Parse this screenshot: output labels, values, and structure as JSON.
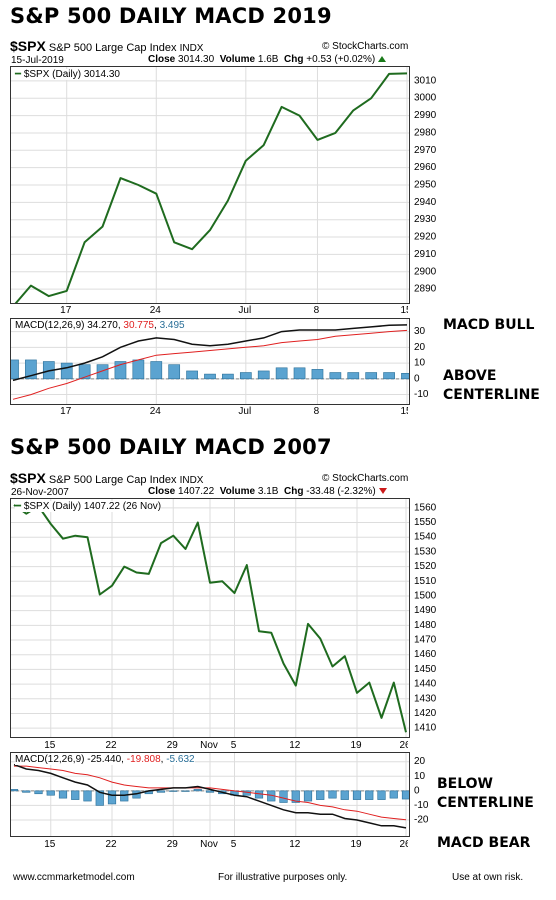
{
  "colors": {
    "price": "#1f6b1f",
    "macd": "#111111",
    "signal": "#e02020",
    "hist": "#5ba3d0",
    "hist_stroke": "#2a6f98",
    "grid": "#dddddd"
  },
  "chart1": {
    "title": "S&P 500 DAILY MACD 2019",
    "symbol": "$SPX",
    "index_name": "S&P 500 Large Cap Index",
    "exchange": "INDX",
    "source": "© StockCharts.com",
    "date": "15-Jul-2019",
    "close_label": "Close",
    "close_value": "3014.30",
    "volume_label": "Volume",
    "volume_value": "1.6B",
    "chg_label": "Chg",
    "chg_value": "+0.53 (+0.02%)",
    "price_legend": "$SPX (Daily) 3014.30",
    "macd_legend_name": "MACD(12,26,9)",
    "macd_legend_macd": "34.270",
    "macd_legend_signal": "30.775",
    "macd_legend_hist": "3.495",
    "side_label_top": "MACD BULL",
    "side_label_bottom": [
      "ABOVE",
      "CENTERLINE"
    ]
  },
  "chart2": {
    "title": "S&P 500 DAILY MACD 2007",
    "symbol": "$SPX",
    "index_name": "S&P 500 Large Cap Index",
    "exchange": "INDX",
    "source": "© StockCharts.com",
    "date": "26-Nov-2007",
    "close_label": "Close",
    "close_value": "1407.22",
    "volume_label": "Volume",
    "volume_value": "3.1B",
    "chg_label": "Chg",
    "chg_value": "-33.48 (-2.32%)",
    "price_legend": "$SPX (Daily) 1407.22 (26 Nov)",
    "macd_legend_name": "MACD(12,26,9)",
    "macd_legend_macd": "-25.440",
    "macd_legend_signal": "-19.808",
    "macd_legend_hist": "-5.632",
    "side_label_top": [
      "BELOW",
      "CENTERLINE"
    ],
    "side_label_bottom": "MACD BEAR"
  },
  "footer": {
    "left": "www.ccmmarketmodel.com",
    "center": "For illustrative purposes only.",
    "right": "Use at own risk."
  },
  "chart_data": [
    {
      "type": "line",
      "title": "S&P 500 DAILY MACD 2019",
      "legend": "$SPX (Daily) 3014.30",
      "x": [
        "2019-06-12",
        "2019-06-13",
        "2019-06-14",
        "2019-06-17",
        "2019-06-18",
        "2019-06-19",
        "2019-06-20",
        "2019-06-21",
        "2019-06-24",
        "2019-06-25",
        "2019-06-26",
        "2019-06-27",
        "2019-06-28",
        "2019-07-01",
        "2019-07-02",
        "2019-07-03",
        "2019-07-05",
        "2019-07-08",
        "2019-07-09",
        "2019-07-10",
        "2019-07-11",
        "2019-07-12",
        "2019-07-15"
      ],
      "x_ticks": [
        "17",
        "24",
        "Jul",
        "8",
        "15"
      ],
      "series": [
        {
          "name": "$SPX (Daily)",
          "values": [
            2880,
            2892,
            2886,
            2889,
            2917,
            2926,
            2954,
            2950,
            2945,
            2917,
            2913,
            2924,
            2941,
            2964,
            2973,
            2995,
            2990,
            2976,
            2980,
            2993,
            3000,
            3014,
            3014.3
          ]
        }
      ],
      "y_ticks": [
        2890,
        2900,
        2910,
        2920,
        2930,
        2940,
        2950,
        2960,
        2970,
        2980,
        2990,
        3000,
        3010
      ],
      "ylim": [
        2882,
        3018
      ],
      "grid": true
    },
    {
      "type": "line",
      "title": "",
      "legend": "MACD(12,26,9) 34.270, 30.775, 3.495",
      "x_ticks": [
        "17",
        "24",
        "Jul",
        "8",
        "15"
      ],
      "series": [
        {
          "name": "MACD",
          "values": [
            -1,
            2,
            5,
            7,
            10,
            14,
            20,
            24,
            26,
            25,
            22,
            21,
            22,
            24,
            26,
            30,
            31,
            31,
            31,
            32,
            33,
            34,
            34.27
          ]
        },
        {
          "name": "Signal",
          "values": [
            -13,
            -10,
            -6,
            -3,
            1,
            5,
            9,
            12,
            15,
            16,
            17,
            18,
            19,
            20,
            21,
            23,
            24,
            25,
            27,
            28,
            29,
            30,
            30.775
          ]
        },
        {
          "name": "Histogram",
          "values": [
            12,
            12,
            11,
            10,
            9,
            9,
            11,
            12,
            11,
            9,
            5,
            3,
            3,
            4,
            5,
            7,
            7,
            6,
            4,
            4,
            4,
            4,
            3.495
          ]
        }
      ],
      "y_ticks": [
        -10,
        0,
        10,
        20,
        30
      ],
      "ylim": [
        -16,
        38
      ],
      "grid": true
    },
    {
      "type": "line",
      "title": "S&P 500 DAILY MACD 2007",
      "legend": "$SPX (Daily) 1407.22 (26 Nov)",
      "x": [
        "2007-10-10",
        "2007-10-11",
        "2007-10-12",
        "2007-10-15",
        "2007-10-16",
        "2007-10-17",
        "2007-10-18",
        "2007-10-19",
        "2007-10-22",
        "2007-10-23",
        "2007-10-24",
        "2007-10-25",
        "2007-10-26",
        "2007-10-29",
        "2007-10-30",
        "2007-10-31",
        "2007-11-01",
        "2007-11-02",
        "2007-11-05",
        "2007-11-06",
        "2007-11-07",
        "2007-11-08",
        "2007-11-09",
        "2007-11-12",
        "2007-11-13",
        "2007-11-14",
        "2007-11-15",
        "2007-11-16",
        "2007-11-19",
        "2007-11-20",
        "2007-11-21",
        "2007-11-23",
        "2007-11-26"
      ],
      "x_ticks": [
        "15",
        "22",
        "29",
        "Nov",
        "5",
        "12",
        "19",
        "26"
      ],
      "series": [
        {
          "name": "$SPX (Daily)",
          "values": [
            1562,
            1556,
            1561,
            1549,
            1539,
            1541,
            1540,
            1501,
            1507,
            1520,
            1516,
            1515,
            1536,
            1541,
            1532,
            1550,
            1509,
            1510,
            1502,
            1521,
            1476,
            1475,
            1454,
            1439,
            1481,
            1471,
            1452,
            1459,
            1434,
            1441,
            1417,
            1441,
            1407.22
          ]
        }
      ],
      "y_ticks": [
        1410,
        1420,
        1430,
        1440,
        1450,
        1460,
        1470,
        1480,
        1490,
        1500,
        1510,
        1520,
        1530,
        1540,
        1550,
        1560
      ],
      "ylim": [
        1404,
        1566
      ],
      "grid": true
    },
    {
      "type": "line",
      "title": "",
      "legend": "MACD(12,26,9) -25.440, -19.808, -5.632",
      "x_ticks": [
        "15",
        "22",
        "29",
        "Nov",
        "5",
        "12",
        "19",
        "26"
      ],
      "series": [
        {
          "name": "MACD",
          "values": [
            18,
            15,
            14,
            12,
            9,
            6,
            4,
            -1,
            -3,
            -3,
            -2,
            0,
            1,
            2,
            2,
            3,
            1,
            -1,
            -3,
            -4,
            -7,
            -10,
            -13,
            -15,
            -15,
            -16,
            -16,
            -19,
            -20,
            -22,
            -24,
            -24,
            -25.44
          ]
        },
        {
          "name": "Signal",
          "values": [
            17,
            17,
            16,
            15,
            14,
            12,
            11,
            9,
            6,
            4,
            3,
            2,
            2,
            2,
            2,
            2,
            2,
            1,
            0,
            -1,
            -2,
            -3,
            -5,
            -7,
            -8,
            -10,
            -11,
            -13,
            -14,
            -16,
            -18,
            -19,
            -19.808
          ]
        },
        {
          "name": "Histogram",
          "values": [
            1,
            -1,
            -2,
            -3,
            -5,
            -6,
            -7,
            -10,
            -9,
            -7,
            -5,
            -2,
            -1,
            0,
            0,
            1,
            -1,
            -2,
            -3,
            -3,
            -5,
            -7,
            -8,
            -8,
            -7,
            -6,
            -5,
            -6,
            -6,
            -6,
            -6,
            -5,
            -5.632
          ]
        }
      ],
      "y_ticks": [
        -20,
        -10,
        0,
        10,
        20
      ],
      "ylim": [
        -31,
        26
      ],
      "grid": true
    }
  ]
}
